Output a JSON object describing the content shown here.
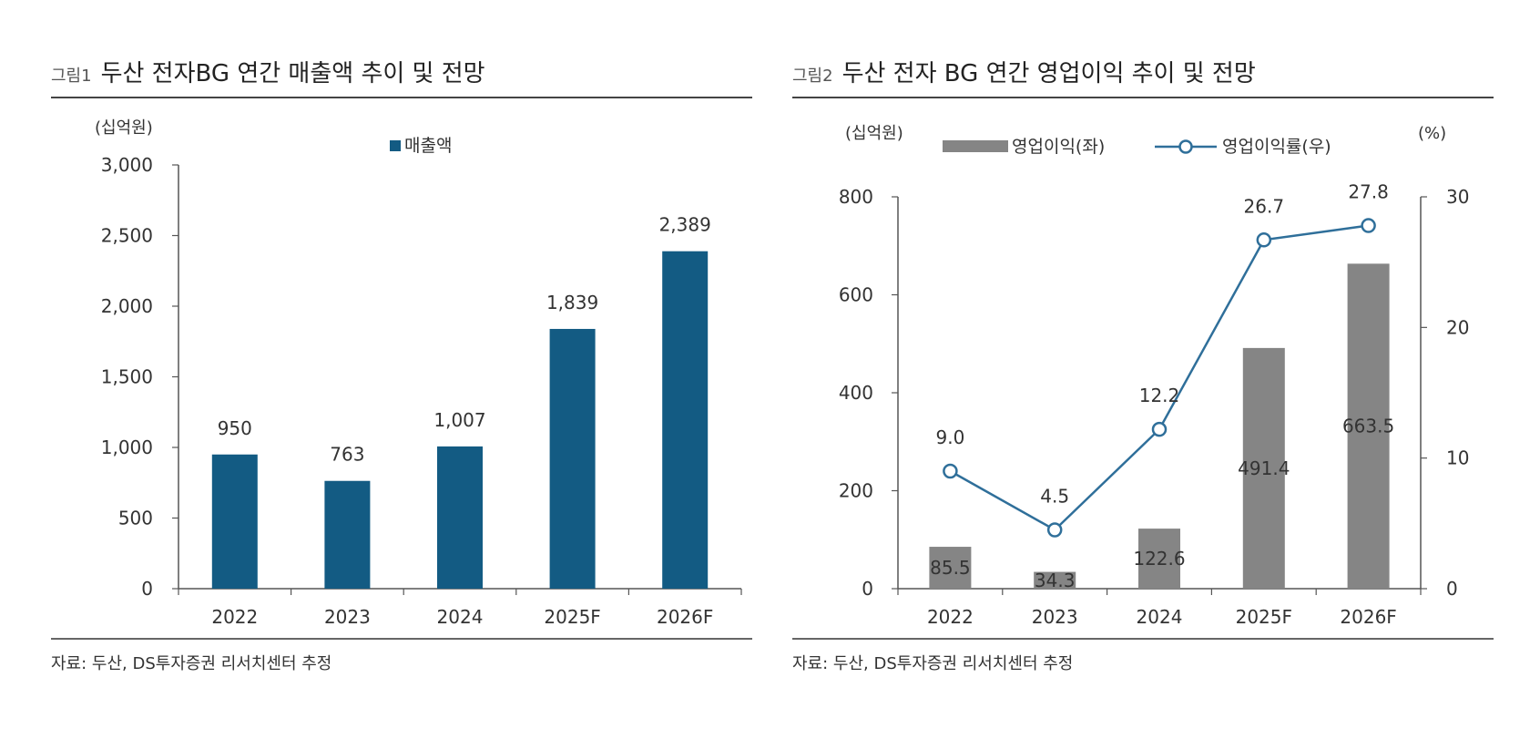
{
  "figures": [
    {
      "number": "그림1",
      "title": "두산 전자BG 연간 매출액 추이 및 전망",
      "source": "자료: 두산, DS투자증권 리서치센터 추정"
    },
    {
      "number": "그림2",
      "title": "두산 전자 BG 연간 영업이익 추이 및 전망",
      "source": "자료: 두산, DS투자증권 리서치센터 추정"
    }
  ],
  "chart_data": [
    {
      "type": "bar",
      "categories": [
        "2022",
        "2023",
        "2024",
        "2025F",
        "2026F"
      ],
      "series": [
        {
          "name": "매출액",
          "values": [
            950,
            763,
            1007,
            1839,
            2389
          ]
        }
      ],
      "data_labels": [
        "950",
        "763",
        "1,007",
        "1,839",
        "2,389"
      ],
      "unit_label": "(십억원)",
      "ylim": [
        0,
        3000
      ],
      "yticks": [
        0,
        500,
        1000,
        1500,
        2000,
        2500,
        3000
      ],
      "ytick_labels": [
        "0",
        "500",
        "1,000",
        "1,500",
        "2,000",
        "2,500",
        "3,000"
      ],
      "legend_position": "top-center",
      "grid": false,
      "colors": {
        "bar": "#135B83"
      }
    },
    {
      "type": "bar+line",
      "categories": [
        "2022",
        "2023",
        "2024",
        "2025F",
        "2026F"
      ],
      "series": [
        {
          "name": "영업이익(좌)",
          "type": "bar",
          "axis": "left",
          "values": [
            85.5,
            34.3,
            122.6,
            491.4,
            663.5
          ],
          "labels": [
            "85.5",
            "34.3",
            "122.6",
            "491.4",
            "663.5"
          ]
        },
        {
          "name": "영업이익률(우)",
          "type": "line",
          "axis": "right",
          "values": [
            9.0,
            4.5,
            12.2,
            26.7,
            27.8
          ],
          "labels": [
            "9.0",
            "4.5",
            "12.2",
            "26.7",
            "27.8"
          ]
        }
      ],
      "left_unit_label": "(십억원)",
      "right_unit_label": "(%)",
      "ylim_left": [
        0,
        800
      ],
      "yticks_left": [
        0,
        200,
        400,
        600,
        800
      ],
      "ylim_right": [
        0,
        30
      ],
      "yticks_right": [
        0,
        10,
        20,
        30
      ],
      "legend_position": "top",
      "grid": false,
      "colors": {
        "bar": "#858585",
        "line": "#2F6F9A",
        "marker_fill": "#ffffff"
      }
    }
  ]
}
